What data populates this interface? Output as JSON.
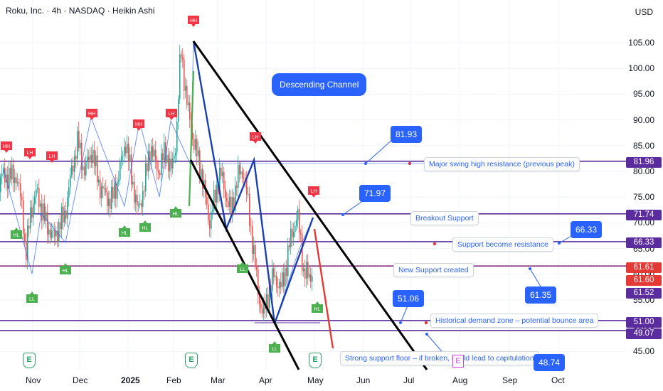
{
  "header": {
    "title": "Roku, Inc. · 4h · NASDAQ · Heikin Ashi",
    "currency": "USD"
  },
  "chart_data": {
    "type": "candlestick",
    "chart_style": "Heikin Ashi",
    "symbol": "Roku, Inc.",
    "interval": "4h",
    "exchange": "NASDAQ",
    "x_tick_labels": [
      "Nov",
      "Dec",
      "2025",
      "Feb",
      "Mar",
      "Apr",
      "May",
      "Jun",
      "Jul",
      "Aug",
      "Sep",
      "Oct"
    ],
    "y_tick_labels": [
      "105.00",
      "100.00",
      "95.00",
      "90.00",
      "85.00",
      "80.00",
      "75.00",
      "70.00",
      "65.00",
      "60.00",
      "55.00",
      "50.00",
      "45.00"
    ],
    "ylim": [
      42.5,
      107.5
    ],
    "colors": {
      "up": "#26a69a",
      "down": "#ef5350",
      "level": "#5b2c9e",
      "channel": "#000000",
      "accent": "#2962ff"
    },
    "price_path": [
      {
        "t": "Oct 28",
        "p": 76
      },
      {
        "t": "Nov 1",
        "p": 79
      },
      {
        "t": "Nov 5",
        "p": 73
      },
      {
        "t": "Nov 7",
        "p": 63
      },
      {
        "t": "Nov 10",
        "p": 72
      },
      {
        "t": "Nov 14",
        "p": 76
      },
      {
        "t": "Nov 20",
        "p": 70
      },
      {
        "t": "Nov 25",
        "p": 67
      },
      {
        "t": "Dec 1",
        "p": 72
      },
      {
        "t": "Dec 5",
        "p": 80
      },
      {
        "t": "Dec 9",
        "p": 86
      },
      {
        "t": "Dec 13",
        "p": 80
      },
      {
        "t": "Dec 18",
        "p": 84
      },
      {
        "t": "Dec 23",
        "p": 77
      },
      {
        "t": "Dec 30",
        "p": 74
      },
      {
        "t": "Jan 3",
        "p": 78
      },
      {
        "t": "Jan 8",
        "p": 86
      },
      {
        "t": "Jan 12",
        "p": 79
      },
      {
        "t": "Jan 16",
        "p": 72
      },
      {
        "t": "Jan 20",
        "p": 77
      },
      {
        "t": "Jan 24",
        "p": 85
      },
      {
        "t": "Jan 29",
        "p": 80
      },
      {
        "t": "Feb 3",
        "p": 84
      },
      {
        "t": "Feb 7",
        "p": 80
      },
      {
        "t": "Feb 10",
        "p": 86
      },
      {
        "t": "Feb 13",
        "p": 104
      },
      {
        "t": "Feb 17",
        "p": 93
      },
      {
        "t": "Feb 21",
        "p": 86
      },
      {
        "t": "Feb 26",
        "p": 80
      },
      {
        "t": "Mar 3",
        "p": 70
      },
      {
        "t": "Mar 6",
        "p": 74
      },
      {
        "t": "Mar 10",
        "p": 80
      },
      {
        "t": "Mar 13",
        "p": 76
      },
      {
        "t": "Mar 17",
        "p": 72
      },
      {
        "t": "Mar 21",
        "p": 79
      },
      {
        "t": "Mar 25",
        "p": 80
      },
      {
        "t": "Mar 28",
        "p": 73
      },
      {
        "t": "Apr 1",
        "p": 64
      },
      {
        "t": "Apr 4",
        "p": 56
      },
      {
        "t": "Apr 7",
        "p": 52
      },
      {
        "t": "Apr 10",
        "p": 56
      },
      {
        "t": "Apr 14",
        "p": 60
      },
      {
        "t": "Apr 18",
        "p": 57
      },
      {
        "t": "Apr 22",
        "p": 62
      },
      {
        "t": "Apr 25",
        "p": 68
      },
      {
        "t": "Apr 29",
        "p": 71
      },
      {
        "t": "May 1",
        "p": 66
      },
      {
        "t": "May 2",
        "p": 60
      }
    ],
    "horizontal_levels": [
      {
        "value": 81.96,
        "label": "81.96",
        "color": "#5b2c9e"
      },
      {
        "value": 71.74,
        "label": "71.74",
        "color": "#5b2c9e"
      },
      {
        "value": 66.33,
        "label": "66.33",
        "color": "#5b2c9e"
      },
      {
        "value": 61.61,
        "label": "61.61",
        "color": "#5b2c9e"
      },
      {
        "value": 51.0,
        "label": "51.00",
        "color": "#5b2c9e"
      },
      {
        "value": 49.07,
        "label": "49.07",
        "color": "#5b2c9e"
      }
    ],
    "price_tags": [
      {
        "label": "81.96",
        "color": "#5b2c9e"
      },
      {
        "label": "71.74",
        "color": "#5b2c9e"
      },
      {
        "label": "66.33",
        "color": "#5b2c9e"
      },
      {
        "label": "61.61",
        "color": "#e53935"
      },
      {
        "label": "61.60",
        "color": "#e53935"
      },
      {
        "label": "61.52",
        "color": "#5b2c9e"
      },
      {
        "label": "51.00",
        "color": "#5b2c9e"
      },
      {
        "label": "49.07",
        "color": "#5b2c9e"
      }
    ],
    "swing_markers": [
      {
        "label": "HH",
        "type": "high"
      },
      {
        "label": "LH",
        "type": "high"
      },
      {
        "label": "LH",
        "type": "high"
      },
      {
        "label": "HH",
        "type": "high"
      },
      {
        "label": "LH",
        "type": "high"
      },
      {
        "label": "HH",
        "type": "high"
      },
      {
        "label": "HH",
        "type": "high"
      },
      {
        "label": "LH",
        "type": "high"
      },
      {
        "label": "LH",
        "type": "high"
      },
      {
        "label": "HL",
        "type": "low"
      },
      {
        "label": "LL",
        "type": "low"
      },
      {
        "label": "HL",
        "type": "low"
      },
      {
        "label": "HL",
        "type": "low"
      },
      {
        "label": "HL",
        "type": "low"
      },
      {
        "label": "HL",
        "type": "low"
      },
      {
        "label": "LL",
        "type": "low"
      },
      {
        "label": "LL",
        "type": "low"
      },
      {
        "label": "HL",
        "type": "low"
      }
    ],
    "annotations": {
      "channel_label": "Descending Channel",
      "callouts": [
        "Major swing high resistance (previous peak)",
        "Breakout Support",
        "Support become resistance",
        "New Support created",
        "Historical demand zone – potential bounce area",
        "Strong support floor – if broken, could lead to capitulation"
      ],
      "values": [
        "81.93",
        "71.97",
        "66.33",
        "51.06",
        "61.35",
        "48.74"
      ]
    },
    "earnings_markers": [
      "E",
      "E",
      "E",
      "E"
    ],
    "grid": true
  }
}
